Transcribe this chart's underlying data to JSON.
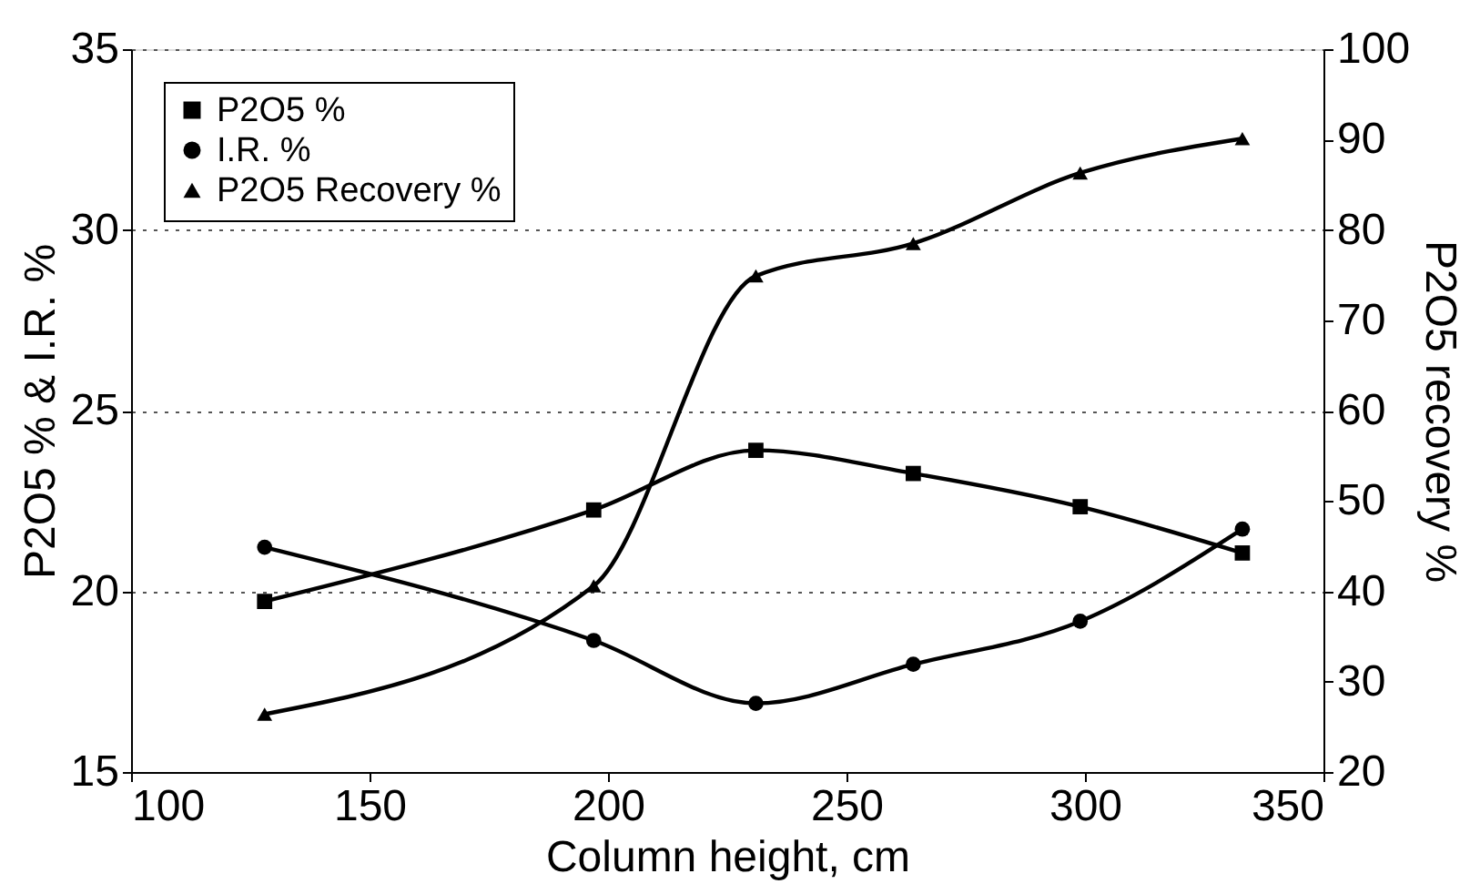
{
  "chart_data": {
    "type": "line",
    "xlabel": "Column height,   cm",
    "ylabel": "P2O5 % & I.R. %",
    "y2label": "P2O5 recovery %",
    "x": [
      128,
      197,
      231,
      264,
      299,
      333
    ],
    "series": [
      {
        "name": "P2O5 %",
        "color": "#000000",
        "marker": "square",
        "values": [
          19.72,
          22.25,
          23.9,
          23.26,
          22.34,
          21.06
        ]
      },
      {
        "name": "I.R. %",
        "color": "#000000",
        "marker": "circle",
        "values": [
          21.22,
          18.64,
          16.9,
          17.98,
          19.17,
          21.72
        ]
      },
      {
        "name": "P2O5 Recovery %",
        "color": "#000000",
        "marker": "triangle",
        "axis": "y2",
        "values": [
          26.4,
          40.6,
          74.9,
          78.5,
          86.3,
          90.1
        ]
      }
    ],
    "xlim": [
      100,
      350
    ],
    "xticks": [
      100,
      150,
      200,
      250,
      300,
      350
    ],
    "ylim": [
      15,
      35
    ],
    "yticks": [
      15,
      20,
      25,
      30,
      35
    ],
    "y2lim": [
      20,
      100
    ],
    "y2ticks": [
      20,
      30,
      40,
      50,
      60,
      70,
      80,
      90,
      100
    ],
    "grid": "y",
    "legend": "top left",
    "line_style": "solid"
  }
}
